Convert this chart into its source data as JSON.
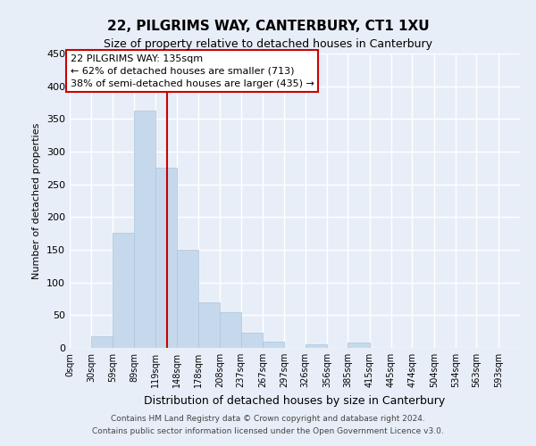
{
  "title": "22, PILGRIMS WAY, CANTERBURY, CT1 1XU",
  "subtitle": "Size of property relative to detached houses in Canterbury",
  "xlabel": "Distribution of detached houses by size in Canterbury",
  "ylabel": "Number of detached properties",
  "bar_color": "#c6d9ec",
  "bar_edge_color": "#aac4dd",
  "bin_labels": [
    "0sqm",
    "30sqm",
    "59sqm",
    "89sqm",
    "119sqm",
    "148sqm",
    "178sqm",
    "208sqm",
    "237sqm",
    "267sqm",
    "297sqm",
    "326sqm",
    "356sqm",
    "385sqm",
    "415sqm",
    "445sqm",
    "474sqm",
    "504sqm",
    "534sqm",
    "563sqm",
    "593sqm"
  ],
  "bin_edges": [
    0,
    30,
    59,
    89,
    119,
    148,
    178,
    208,
    237,
    267,
    297,
    326,
    356,
    385,
    415,
    445,
    474,
    504,
    534,
    563,
    593
  ],
  "bar_heights": [
    0,
    18,
    176,
    363,
    275,
    150,
    70,
    55,
    23,
    9,
    0,
    6,
    0,
    8,
    0,
    0,
    0,
    0,
    0,
    0,
    0
  ],
  "ylim": [
    0,
    450
  ],
  "yticks": [
    0,
    50,
    100,
    150,
    200,
    250,
    300,
    350,
    400,
    450
  ],
  "vline_x": 135,
  "vline_color": "#cc0000",
  "annotation_title": "22 PILGRIMS WAY: 135sqm",
  "annotation_line1": "← 62% of detached houses are smaller (713)",
  "annotation_line2": "38% of semi-detached houses are larger (435) →",
  "annotation_box_color": "#ffffff",
  "annotation_box_edge": "#cc0000",
  "footer_line1": "Contains HM Land Registry data © Crown copyright and database right 2024.",
  "footer_line2": "Contains public sector information licensed under the Open Government Licence v3.0.",
  "background_color": "#e8eef8",
  "plot_bg_color": "#e8eef8",
  "grid_color": "#ffffff"
}
